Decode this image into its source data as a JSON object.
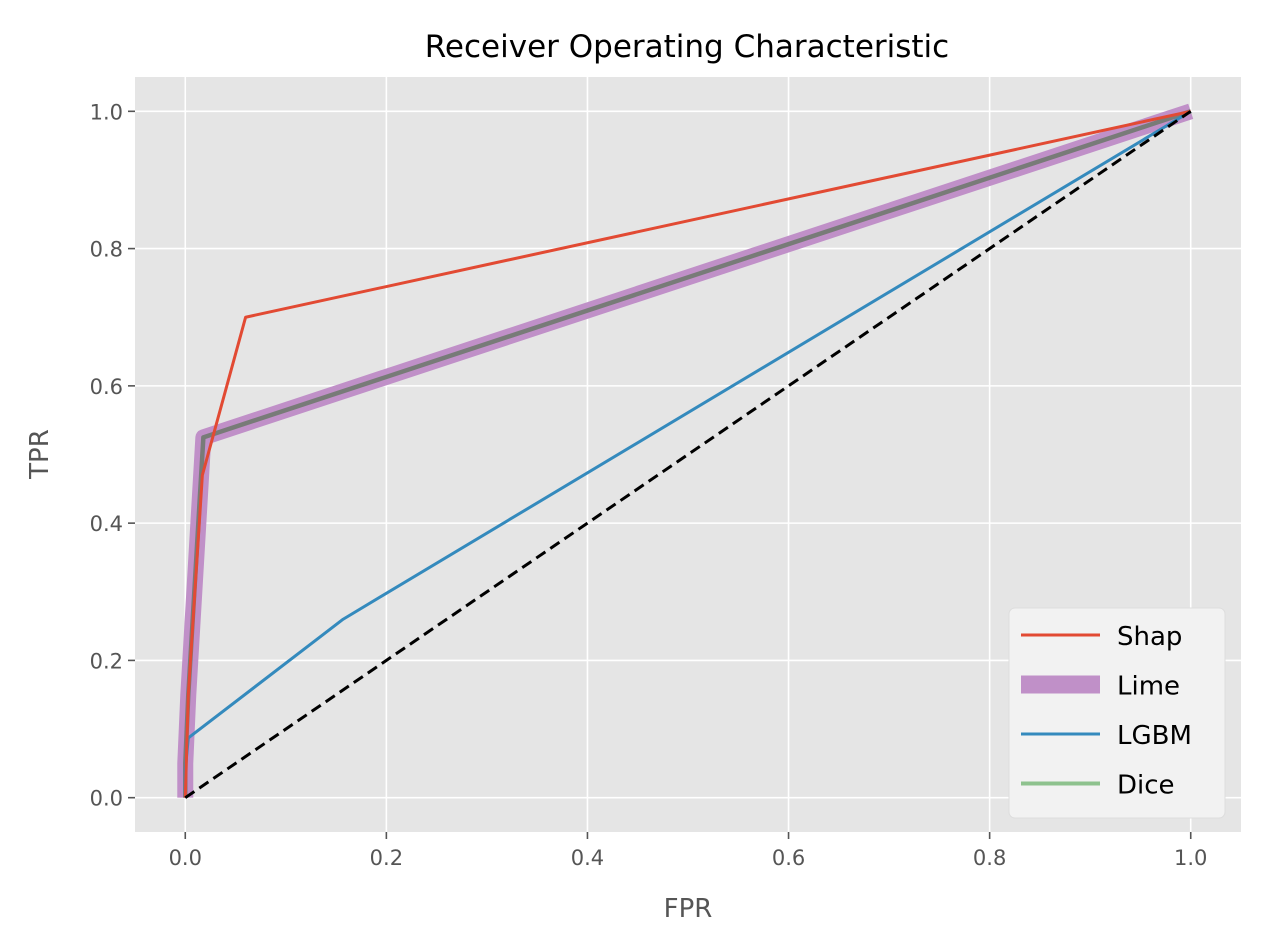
{
  "chart_data": {
    "type": "line",
    "title": "Receiver Operating Characteristic",
    "xlabel": "FPR",
    "ylabel": "TPR",
    "xlim": [
      -0.05,
      1.05
    ],
    "ylim": [
      -0.05,
      1.05
    ],
    "xticks": [
      0.0,
      0.2,
      0.4,
      0.6,
      0.8,
      1.0
    ],
    "yticks": [
      0.0,
      0.2,
      0.4,
      0.6,
      0.8,
      1.0
    ],
    "xtick_labels": [
      "0.0",
      "0.2",
      "0.4",
      "0.6",
      "0.8",
      "1.0"
    ],
    "ytick_labels": [
      "0.0",
      "0.2",
      "0.4",
      "0.6",
      "0.8",
      "1.0"
    ],
    "grid": true,
    "background": "#e5e5e5",
    "legend_position": "lower-right",
    "series": [
      {
        "name": "Shap",
        "color": "#e24a33",
        "style": "thin",
        "x": [
          0.0,
          0.003,
          0.017,
          0.06,
          1.0
        ],
        "y": [
          0.0,
          0.15,
          0.47,
          0.7,
          1.0
        ]
      },
      {
        "name": "Lime",
        "color": "#c090c8",
        "style": "thick",
        "x": [
          0.0,
          0.0,
          0.003,
          0.018,
          1.0
        ],
        "y": [
          0.0,
          0.05,
          0.15,
          0.525,
          1.0
        ]
      },
      {
        "name": "LGBM",
        "color": "#348abd",
        "style": "thin",
        "x": [
          0.0,
          0.0,
          0.003,
          0.157,
          1.0
        ],
        "y": [
          0.0,
          0.04,
          0.087,
          0.26,
          1.0
        ]
      },
      {
        "name": "Dice",
        "color": "#8ec28e",
        "style": "medium",
        "x": [
          0.0,
          0.0,
          0.003,
          0.018,
          1.0
        ],
        "y": [
          0.0,
          0.05,
          0.15,
          0.525,
          1.0
        ]
      }
    ],
    "overlay_color": "#777777",
    "reference_line": {
      "x": [
        0.0,
        1.0
      ],
      "y": [
        0.0,
        1.0
      ],
      "color": "#000000",
      "dashed": true
    }
  }
}
